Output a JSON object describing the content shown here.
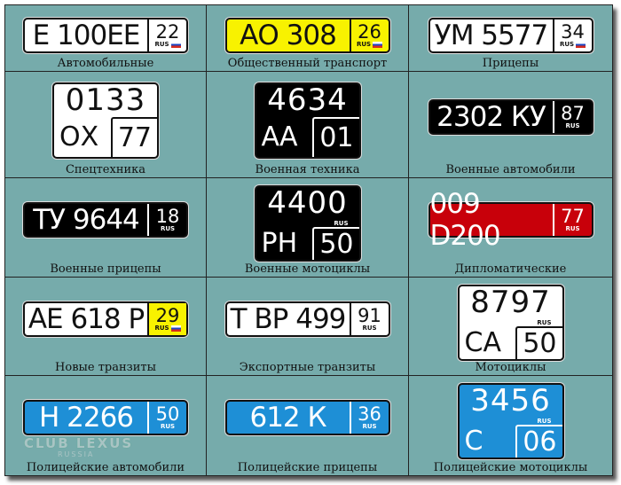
{
  "colors": {
    "background": "#76abab",
    "white": "#ffffff",
    "yellow": "#f8f200",
    "black": "#000000",
    "red": "#c8000a",
    "blue": "#1e8fd6"
  },
  "watermark": {
    "line1": "CLUB LEXUS",
    "line2": "RUSSIA"
  },
  "plates": [
    {
      "caption": "Автомобильные",
      "shape": "wide",
      "bg": "white",
      "main": "Е 100ЕЕ",
      "region": "22",
      "rus": "RUS",
      "flag": true
    },
    {
      "caption": "Общественный транспорт",
      "shape": "wide",
      "bg": "yellow",
      "main": "АО 308",
      "region": "26",
      "rus": "RUS",
      "flag": true
    },
    {
      "caption": "Прицепы",
      "shape": "wide",
      "bg": "white",
      "main": "УМ 5577",
      "region": "34",
      "rus": "RUS",
      "flag": true
    },
    {
      "caption": "Спецтехника",
      "shape": "square",
      "bg": "white",
      "top": "0133",
      "bottom_left": "ОХ",
      "region": "77",
      "rus": ""
    },
    {
      "caption": "Военная техника",
      "shape": "square",
      "bg": "black",
      "top": "4634",
      "bottom_left": "АА",
      "region": "01",
      "rus": ""
    },
    {
      "caption": "Военные автомобили",
      "shape": "wide",
      "bg": "black",
      "main": "2302 КУ",
      "region": "87",
      "rus": "RUS",
      "flag": false
    },
    {
      "caption": "Военные прицепы",
      "shape": "wide",
      "bg": "black",
      "main": "ТУ 9644",
      "region": "18",
      "rus": "RUS",
      "flag": false
    },
    {
      "caption": "Военные мотоциклы",
      "shape": "square",
      "bg": "black",
      "top": "4400",
      "bottom_left": "РН",
      "region": "50",
      "rus": "RUS"
    },
    {
      "caption": "Дипломатические",
      "shape": "wide",
      "bg": "red",
      "main": "009 D200",
      "region": "77",
      "rus": "RUS",
      "flag": false
    },
    {
      "caption": "Новые транзиты",
      "shape": "wide",
      "bg": "white",
      "main": "АЕ 618 Р",
      "region": "29",
      "rus": "RUS",
      "flag": true,
      "region_bg": "yellow"
    },
    {
      "caption": "Экспортные транзиты",
      "shape": "wide",
      "bg": "white",
      "main": "Т ВР 499",
      "region": "91",
      "rus": "RUS",
      "flag": false
    },
    {
      "caption": "Мотоциклы",
      "shape": "square",
      "bg": "white",
      "top": "8797",
      "bottom_left": "СА",
      "region": "50",
      "rus": "RUS"
    },
    {
      "caption": "Полицейские автомобили",
      "shape": "wide",
      "bg": "blue",
      "main": "Н 2266",
      "region": "50",
      "rus": "RUS",
      "flag": false
    },
    {
      "caption": "Полицейские прицепы",
      "shape": "wide",
      "bg": "blue",
      "main": "612 К",
      "region": "36",
      "rus": "RUS",
      "flag": false
    },
    {
      "caption": "Полицейские мотоциклы",
      "shape": "square",
      "bg": "blue",
      "top": "3456",
      "bottom_left": "С",
      "region": "06",
      "rus": "RUS"
    }
  ]
}
